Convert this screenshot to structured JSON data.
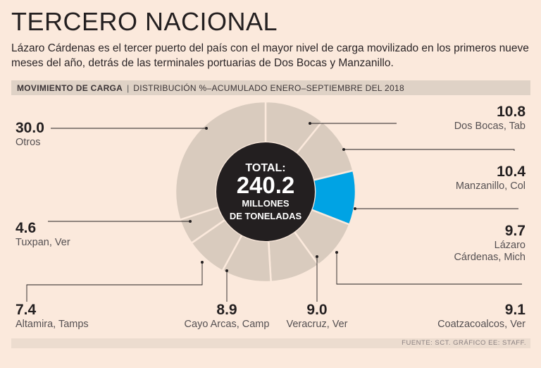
{
  "header": {
    "title": "TERCERO NACIONAL",
    "subtitle": "Lázaro Cárdenas es el tercer puerto del país con el mayor nivel de carga movilizado en los primeros nueve meses del año, detrás de las terminales portuarias de Dos Bocas y Manzanillo."
  },
  "section": {
    "label": "MOVIMIENTO DE CARGA",
    "separator": "|",
    "description": "DISTRIBUCIÓN %–ACUMULADO ENERO–SEPTIEMBRE DEL 2018"
  },
  "center": {
    "label": "TOTAL:",
    "value": "240.2",
    "unit_line1": "MILLONES",
    "unit_line2": "DE TONELADAS"
  },
  "footer": {
    "source": "FUENTE: SCT. GRÁFICO EE: STAFF."
  },
  "colors": {
    "slice": "#d9cbbe",
    "highlight": "#00a3e4",
    "center": "#231f20",
    "background": "#fbe9dc"
  },
  "chart_data": {
    "type": "pie",
    "title": "MOVIMIENTO DE CARGA",
    "subtitle": "DISTRIBUCIÓN %–ACUMULADO ENERO–SEPTIEMBRE DEL 2018",
    "total": 240.2,
    "unit": "%",
    "slices": [
      {
        "label": "Dos Bocas, Tab",
        "value": 10.8
      },
      {
        "label": "Manzanillo, Col",
        "value": 10.4
      },
      {
        "label": "Lázaro Cárdenas, Mich",
        "label_lines": [
          "Lázaro",
          "Cárdenas, Mich"
        ],
        "value": 9.7,
        "highlight": true
      },
      {
        "label": "Coatzacoalcos, Ver",
        "value": 9.1
      },
      {
        "label": "Veracruz, Ver",
        "value": 9.0
      },
      {
        "label": "Cayo Arcas, Camp",
        "value": 8.9
      },
      {
        "label": "Altamira, Tamps",
        "value": 7.4
      },
      {
        "label": "Tuxpan, Ver",
        "value": 4.6
      },
      {
        "label": "Otros",
        "value": 30.0
      }
    ]
  }
}
